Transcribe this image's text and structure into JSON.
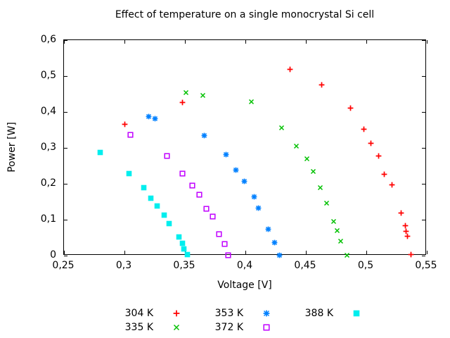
{
  "title": "Effect of temperature on a single monocrystal Si cell",
  "axes": {
    "x": {
      "label": "Voltage [V]",
      "min": 0.25,
      "max": 0.55,
      "ticks": [
        {
          "v": 0.25,
          "label": "0,25"
        },
        {
          "v": 0.3,
          "label": "0,3"
        },
        {
          "v": 0.35,
          "label": "0,35"
        },
        {
          "v": 0.4,
          "label": "0,4"
        },
        {
          "v": 0.45,
          "label": "0,45"
        },
        {
          "v": 0.5,
          "label": "0,5"
        },
        {
          "v": 0.55,
          "label": "0,55"
        }
      ]
    },
    "y": {
      "label": "Power [W]",
      "min": 0,
      "max": 0.6,
      "ticks": [
        {
          "v": 0.0,
          "label": "0"
        },
        {
          "v": 0.1,
          "label": "0,1"
        },
        {
          "v": 0.2,
          "label": "0,2"
        },
        {
          "v": 0.3,
          "label": "0,3"
        },
        {
          "v": 0.4,
          "label": "0,4"
        },
        {
          "v": 0.5,
          "label": "0,5"
        },
        {
          "v": 0.6,
          "label": "0,6"
        }
      ]
    }
  },
  "chart_data": {
    "type": "scatter",
    "title": "Effect of temperature on a single monocrystal Si cell",
    "xlabel": "Voltage [V]",
    "ylabel": "Power [W]",
    "xlim": [
      0.25,
      0.55
    ],
    "ylim": [
      0,
      0.6
    ],
    "grid": false,
    "legend_position": "bottom-center",
    "decimal_separator": ",",
    "series": [
      {
        "name": "304 K",
        "color": "#ff0000",
        "marker": "plus",
        "points": [
          [
            0.3,
            0.365
          ],
          [
            0.348,
            0.426
          ],
          [
            0.437,
            0.518
          ],
          [
            0.463,
            0.475
          ],
          [
            0.487,
            0.41
          ],
          [
            0.498,
            0.351
          ],
          [
            0.504,
            0.312
          ],
          [
            0.51,
            0.277
          ],
          [
            0.515,
            0.226
          ],
          [
            0.521,
            0.198
          ],
          [
            0.529,
            0.118
          ],
          [
            0.532,
            0.084
          ],
          [
            0.533,
            0.067
          ],
          [
            0.534,
            0.053
          ],
          [
            0.537,
            0.002
          ]
        ]
      },
      {
        "name": "335 K",
        "color": "#00c000",
        "marker": "cross",
        "points": [
          [
            0.351,
            0.453
          ],
          [
            0.365,
            0.446
          ],
          [
            0.405,
            0.429
          ],
          [
            0.43,
            0.355
          ],
          [
            0.442,
            0.304
          ],
          [
            0.451,
            0.269
          ],
          [
            0.456,
            0.235
          ],
          [
            0.462,
            0.19
          ],
          [
            0.467,
            0.147
          ],
          [
            0.473,
            0.096
          ],
          [
            0.476,
            0.069
          ],
          [
            0.479,
            0.041
          ],
          [
            0.484,
            0.001
          ]
        ]
      },
      {
        "name": "353 K",
        "color": "#0080ff",
        "marker": "asterisk",
        "points": [
          [
            0.32,
            0.388
          ],
          [
            0.325,
            0.381
          ],
          [
            0.366,
            0.335
          ],
          [
            0.384,
            0.282
          ],
          [
            0.392,
            0.239
          ],
          [
            0.399,
            0.206
          ],
          [
            0.407,
            0.163
          ],
          [
            0.411,
            0.133
          ],
          [
            0.419,
            0.073
          ],
          [
            0.424,
            0.037
          ],
          [
            0.428,
            0.001
          ]
        ]
      },
      {
        "name": "372 K",
        "color": "#c000ff",
        "marker": "open-square",
        "points": [
          [
            0.305,
            0.337
          ],
          [
            0.335,
            0.278
          ],
          [
            0.348,
            0.229
          ],
          [
            0.356,
            0.196
          ],
          [
            0.362,
            0.169
          ],
          [
            0.368,
            0.131
          ],
          [
            0.373,
            0.108
          ],
          [
            0.378,
            0.059
          ],
          [
            0.383,
            0.033
          ],
          [
            0.386,
            0.001
          ]
        ]
      },
      {
        "name": "388 K",
        "color": "#00eeee",
        "marker": "filled-square",
        "points": [
          [
            0.28,
            0.288
          ],
          [
            0.304,
            0.229
          ],
          [
            0.316,
            0.19
          ],
          [
            0.322,
            0.159
          ],
          [
            0.327,
            0.139
          ],
          [
            0.333,
            0.112
          ],
          [
            0.337,
            0.09
          ],
          [
            0.345,
            0.051
          ],
          [
            0.348,
            0.035
          ],
          [
            0.349,
            0.018
          ],
          [
            0.352,
            0.002
          ]
        ]
      }
    ],
    "legend_grid": [
      [
        0,
        2,
        4
      ],
      [
        1,
        3
      ]
    ]
  }
}
